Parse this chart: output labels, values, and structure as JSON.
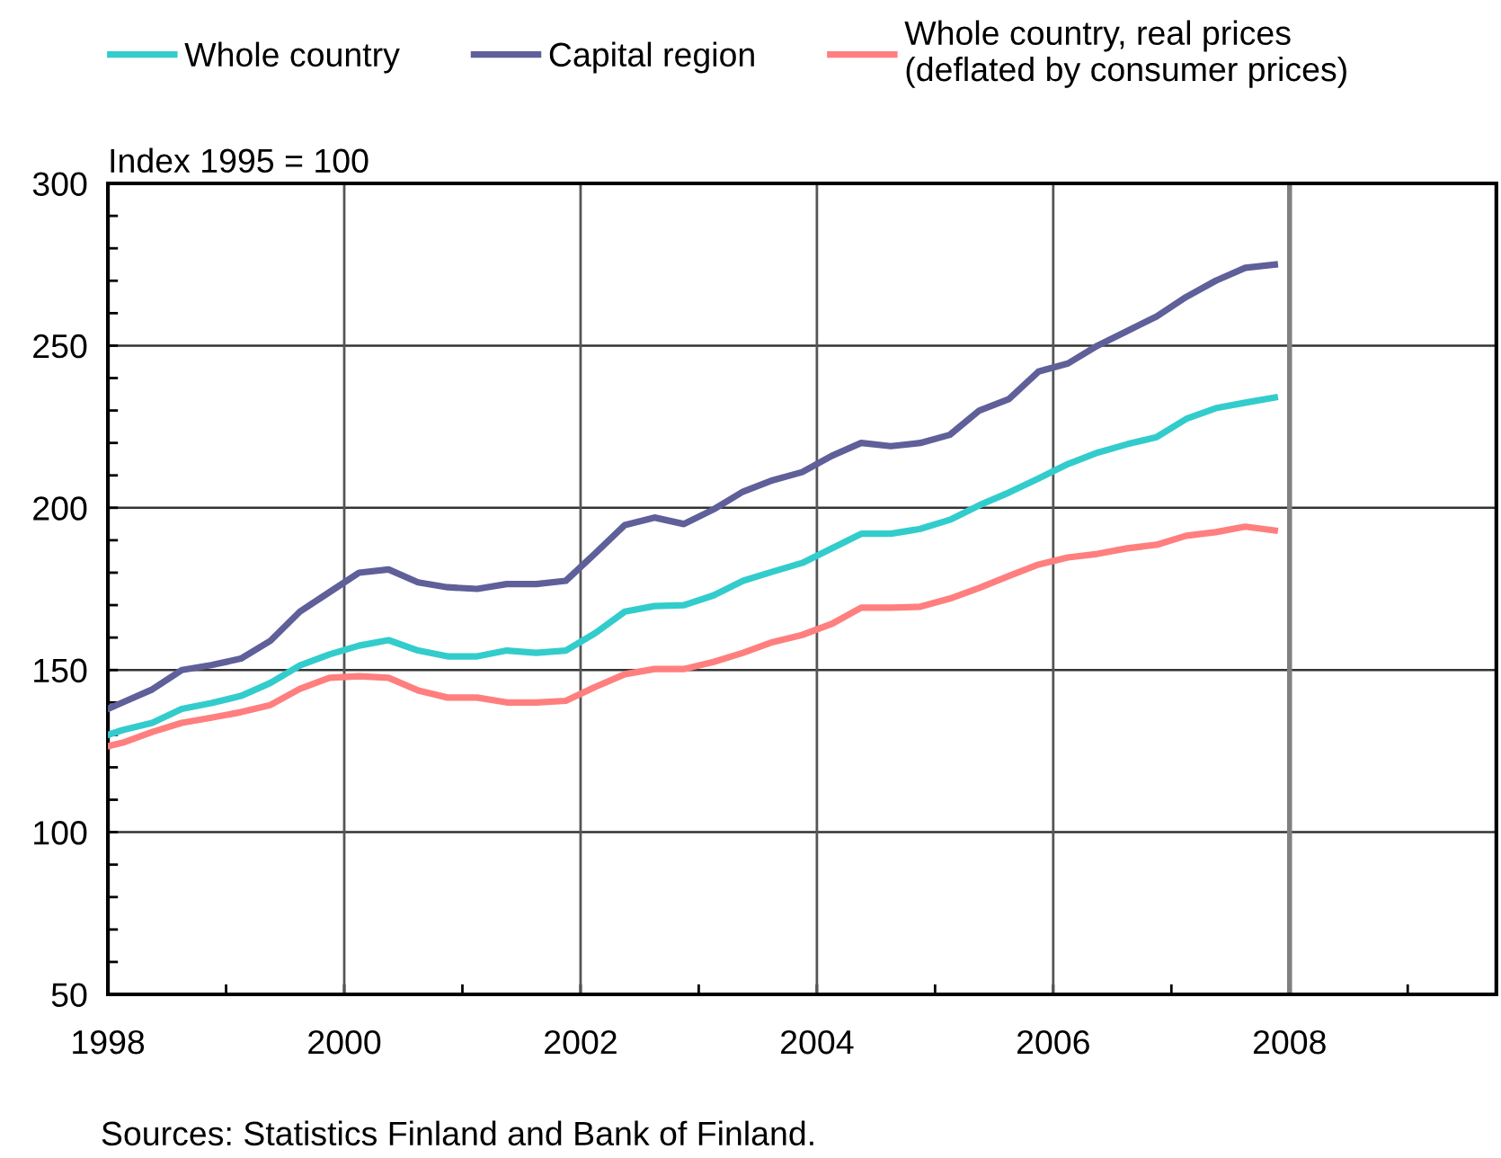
{
  "chart_data": {
    "type": "line",
    "ylabel": "Index 1995 = 100",
    "annotations": [
      "Sources: Statistics Finland and Bank of Finland."
    ],
    "x": [
      1998.0,
      1998.125,
      1998.375,
      1998.625,
      1998.875,
      1999.125,
      1999.375,
      1999.625,
      1999.875,
      2000.125,
      2000.375,
      2000.625,
      2000.875,
      2001.125,
      2001.375,
      2001.625,
      2001.875,
      2002.125,
      2002.375,
      2002.625,
      2002.875,
      2003.125,
      2003.375,
      2003.625,
      2003.875,
      2004.125,
      2004.375,
      2004.625,
      2004.875,
      2005.125,
      2005.375,
      2005.625,
      2005.875,
      2006.125,
      2006.375,
      2006.625,
      2006.875,
      2007.125,
      2007.375,
      2007.625,
      2007.875
    ],
    "series": [
      {
        "name": "Whole country",
        "color": "#33cccc",
        "values": [
          130,
          131.5,
          133.7,
          138,
          139.8,
          142,
          146,
          151.4,
          154.8,
          157.5,
          159.2,
          156,
          154.2,
          154.2,
          156,
          155.3,
          156,
          161.4,
          168,
          169.7,
          170,
          173,
          177.5,
          180.3,
          183,
          187.5,
          192,
          192,
          193.5,
          196.3,
          200.8,
          204.7,
          209,
          213.5,
          217,
          219.6,
          221.8,
          227.4,
          230.7,
          232.4,
          234
        ]
      },
      {
        "name": "Capital region",
        "color": "#5f5f99",
        "values": [
          138,
          140,
          144,
          150,
          151.5,
          153.5,
          159,
          168,
          174,
          180,
          181,
          177,
          175.5,
          175,
          176.5,
          176.5,
          177.5,
          186,
          194.7,
          197,
          195,
          199.5,
          205,
          208.5,
          211,
          216,
          220,
          219,
          220,
          222.5,
          230,
          233.5,
          242,
          244.5,
          250,
          254.5,
          259,
          265,
          270,
          274,
          275
        ]
      },
      {
        "name": "Whole country, real prices\n(deflated by consumer prices)",
        "color": "#ff7f7f",
        "values": [
          126.5,
          127.6,
          130.9,
          133.7,
          135.3,
          137,
          139.2,
          144.2,
          147.6,
          148.1,
          147.6,
          143.7,
          141.5,
          141.5,
          140,
          140,
          140.5,
          144.8,
          148.7,
          150.3,
          150.3,
          152.5,
          155.3,
          158.6,
          160.8,
          164.2,
          169.2,
          169.2,
          169.5,
          172,
          175.3,
          179,
          182.5,
          184.7,
          185.8,
          187.5,
          188.6,
          191.4,
          192.5,
          194.2,
          193
        ]
      }
    ],
    "xlim": [
      1998,
      2009.75
    ],
    "xticks": [
      1998,
      {
        "value": 1999,
        "label": null
      },
      2000,
      {
        "value": 2001,
        "label": null
      },
      2002,
      {
        "value": 2003,
        "label": null
      },
      2004,
      {
        "value": 2005,
        "label": null
      },
      2006,
      {
        "value": 2007,
        "label": null
      },
      2008,
      {
        "value": 2009,
        "label": null
      }
    ],
    "ylim": [
      50,
      300
    ],
    "yticks": [
      50,
      {
        "value": 60,
        "label": null
      },
      {
        "value": 70,
        "label": null
      },
      {
        "value": 80,
        "label": null
      },
      {
        "value": 90,
        "label": null
      },
      100,
      {
        "value": 110,
        "label": null
      },
      {
        "value": 120,
        "label": null
      },
      {
        "value": 130,
        "label": null
      },
      {
        "value": 140,
        "label": null
      },
      150,
      {
        "value": 160,
        "label": null
      },
      {
        "value": 170,
        "label": null
      },
      {
        "value": 180,
        "label": null
      },
      {
        "value": 190,
        "label": null
      },
      200,
      {
        "value": 210,
        "label": null
      },
      {
        "value": 220,
        "label": null
      },
      {
        "value": 230,
        "label": null
      },
      {
        "value": 240,
        "label": null
      },
      250,
      {
        "value": 260,
        "label": null
      },
      {
        "value": 270,
        "label": null
      },
      {
        "value": 280,
        "label": null
      },
      {
        "value": 290,
        "label": null
      },
      300
    ],
    "grid": "y",
    "ref_lines": [
      {
        "axis": "x",
        "value": 2000,
        "color": "#555555"
      },
      {
        "axis": "x",
        "value": 2002,
        "color": "#555555"
      },
      {
        "axis": "x",
        "value": 2004,
        "color": "#555555"
      },
      {
        "axis": "x",
        "value": 2006,
        "color": "#555555"
      },
      {
        "axis": "x",
        "value": 2008,
        "color": "#808080"
      }
    ],
    "legend": "top",
    "marker": "none",
    "line_style": "solid"
  }
}
